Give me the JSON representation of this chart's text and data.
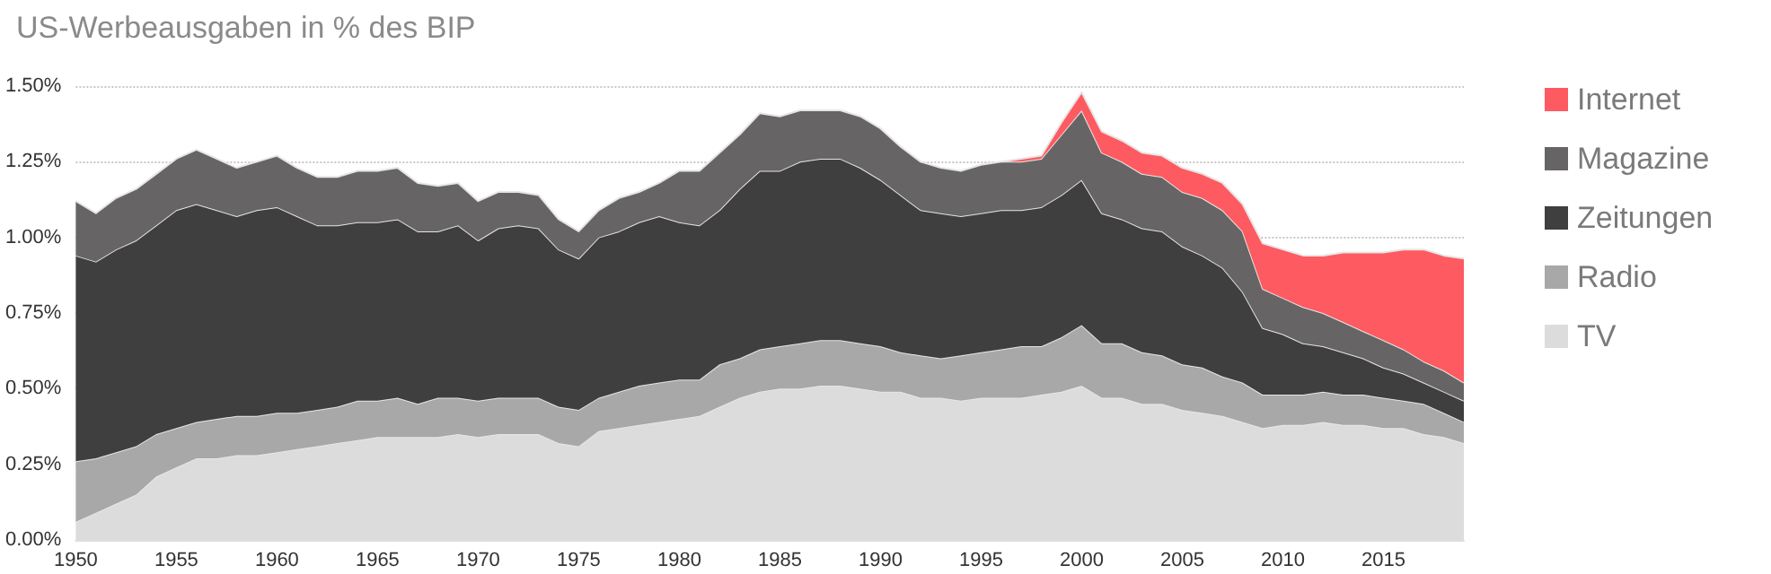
{
  "chart_data": {
    "type": "area",
    "title": "US-Werbeausgaben in % des BIP",
    "stacked": true,
    "legend": "right",
    "grid": "y",
    "x": [
      1950,
      1951,
      1952,
      1953,
      1954,
      1955,
      1956,
      1957,
      1958,
      1959,
      1960,
      1961,
      1962,
      1963,
      1964,
      1965,
      1966,
      1967,
      1968,
      1969,
      1970,
      1971,
      1972,
      1973,
      1974,
      1975,
      1976,
      1977,
      1978,
      1979,
      1980,
      1981,
      1982,
      1983,
      1984,
      1985,
      1986,
      1987,
      1988,
      1989,
      1990,
      1991,
      1992,
      1993,
      1994,
      1995,
      1996,
      1997,
      1998,
      1999,
      2000,
      2001,
      2002,
      2003,
      2004,
      2005,
      2006,
      2007,
      2008,
      2009,
      2010,
      2011,
      2012,
      2013,
      2014,
      2015,
      2016,
      2017,
      2018,
      2019
    ],
    "xlim": [
      1950,
      2019
    ],
    "xticks": [
      1950,
      1955,
      1960,
      1965,
      1970,
      1975,
      1980,
      1985,
      1990,
      1995,
      2000,
      2005,
      2010,
      2015
    ],
    "ylim": [
      0,
      1.5
    ],
    "yticks": [
      {
        "value": 0,
        "label": "0.00%"
      },
      {
        "value": 0.25,
        "label": "0.25%"
      },
      {
        "value": 0.5,
        "label": "0.50%"
      },
      {
        "value": 0.75,
        "label": "0.75%"
      },
      {
        "value": 1,
        "label": "1.00%"
      },
      {
        "value": 1.25,
        "label": "1.25%"
      },
      {
        "value": 1.5,
        "label": "1.50%"
      }
    ],
    "series": [
      {
        "name": "TV",
        "color": "#dcdcdc",
        "values": [
          0.06,
          0.09,
          0.12,
          0.15,
          0.21,
          0.24,
          0.27,
          0.27,
          0.28,
          0.28,
          0.29,
          0.3,
          0.31,
          0.32,
          0.33,
          0.34,
          0.34,
          0.34,
          0.34,
          0.35,
          0.34,
          0.35,
          0.35,
          0.35,
          0.32,
          0.31,
          0.36,
          0.37,
          0.38,
          0.39,
          0.4,
          0.41,
          0.44,
          0.47,
          0.49,
          0.5,
          0.5,
          0.51,
          0.51,
          0.5,
          0.49,
          0.49,
          0.47,
          0.47,
          0.46,
          0.47,
          0.47,
          0.47,
          0.48,
          0.49,
          0.51,
          0.47,
          0.47,
          0.45,
          0.45,
          0.43,
          0.42,
          0.41,
          0.39,
          0.37,
          0.38,
          0.38,
          0.39,
          0.38,
          0.38,
          0.37,
          0.37,
          0.35,
          0.34,
          0.32
        ]
      },
      {
        "name": "Radio",
        "color": "#a8a8a8",
        "values": [
          0.2,
          0.18,
          0.17,
          0.16,
          0.14,
          0.13,
          0.12,
          0.13,
          0.13,
          0.13,
          0.13,
          0.12,
          0.12,
          0.12,
          0.13,
          0.12,
          0.13,
          0.11,
          0.13,
          0.12,
          0.12,
          0.12,
          0.12,
          0.12,
          0.12,
          0.12,
          0.11,
          0.12,
          0.13,
          0.13,
          0.13,
          0.12,
          0.14,
          0.13,
          0.14,
          0.14,
          0.15,
          0.15,
          0.15,
          0.15,
          0.15,
          0.13,
          0.14,
          0.13,
          0.15,
          0.15,
          0.16,
          0.17,
          0.16,
          0.18,
          0.2,
          0.18,
          0.18,
          0.17,
          0.16,
          0.15,
          0.15,
          0.13,
          0.13,
          0.11,
          0.1,
          0.1,
          0.1,
          0.1,
          0.1,
          0.1,
          0.09,
          0.1,
          0.08,
          0.07
        ]
      },
      {
        "name": "Zeitungen",
        "color": "#3f3f3f",
        "values": [
          0.68,
          0.65,
          0.67,
          0.68,
          0.69,
          0.72,
          0.72,
          0.69,
          0.66,
          0.68,
          0.68,
          0.65,
          0.61,
          0.6,
          0.59,
          0.59,
          0.59,
          0.57,
          0.55,
          0.57,
          0.53,
          0.56,
          0.57,
          0.56,
          0.52,
          0.5,
          0.53,
          0.53,
          0.54,
          0.55,
          0.52,
          0.51,
          0.51,
          0.56,
          0.59,
          0.58,
          0.6,
          0.6,
          0.6,
          0.58,
          0.55,
          0.52,
          0.48,
          0.48,
          0.46,
          0.46,
          0.46,
          0.45,
          0.46,
          0.47,
          0.48,
          0.43,
          0.41,
          0.41,
          0.41,
          0.39,
          0.37,
          0.36,
          0.3,
          0.22,
          0.2,
          0.17,
          0.15,
          0.14,
          0.12,
          0.1,
          0.09,
          0.07,
          0.07,
          0.07
        ]
      },
      {
        "name": "Magazine",
        "color": "#666465",
        "values": [
          0.18,
          0.16,
          0.17,
          0.17,
          0.17,
          0.17,
          0.18,
          0.17,
          0.16,
          0.16,
          0.17,
          0.16,
          0.16,
          0.16,
          0.17,
          0.17,
          0.17,
          0.16,
          0.15,
          0.14,
          0.13,
          0.12,
          0.11,
          0.11,
          0.1,
          0.09,
          0.09,
          0.11,
          0.1,
          0.11,
          0.17,
          0.18,
          0.19,
          0.18,
          0.19,
          0.18,
          0.17,
          0.16,
          0.16,
          0.17,
          0.17,
          0.16,
          0.16,
          0.15,
          0.15,
          0.16,
          0.16,
          0.16,
          0.16,
          0.2,
          0.23,
          0.2,
          0.19,
          0.18,
          0.18,
          0.18,
          0.19,
          0.19,
          0.2,
          0.13,
          0.12,
          0.12,
          0.11,
          0.1,
          0.09,
          0.09,
          0.08,
          0.07,
          0.07,
          0.06
        ]
      },
      {
        "name": "Internet",
        "color": "#fe5a61",
        "values": [
          null,
          null,
          null,
          null,
          null,
          null,
          null,
          null,
          null,
          null,
          null,
          null,
          null,
          null,
          null,
          null,
          null,
          null,
          null,
          null,
          null,
          null,
          null,
          null,
          null,
          null,
          null,
          null,
          null,
          null,
          null,
          null,
          null,
          null,
          null,
          null,
          null,
          null,
          null,
          null,
          null,
          null,
          null,
          null,
          null,
          null,
          0,
          0.01,
          0.01,
          0.04,
          0.06,
          0.07,
          0.07,
          0.07,
          0.07,
          0.08,
          0.08,
          0.09,
          0.09,
          0.15,
          0.16,
          0.17,
          0.19,
          0.23,
          0.26,
          0.29,
          0.33,
          0.37,
          0.38,
          0.41
        ]
      }
    ]
  }
}
